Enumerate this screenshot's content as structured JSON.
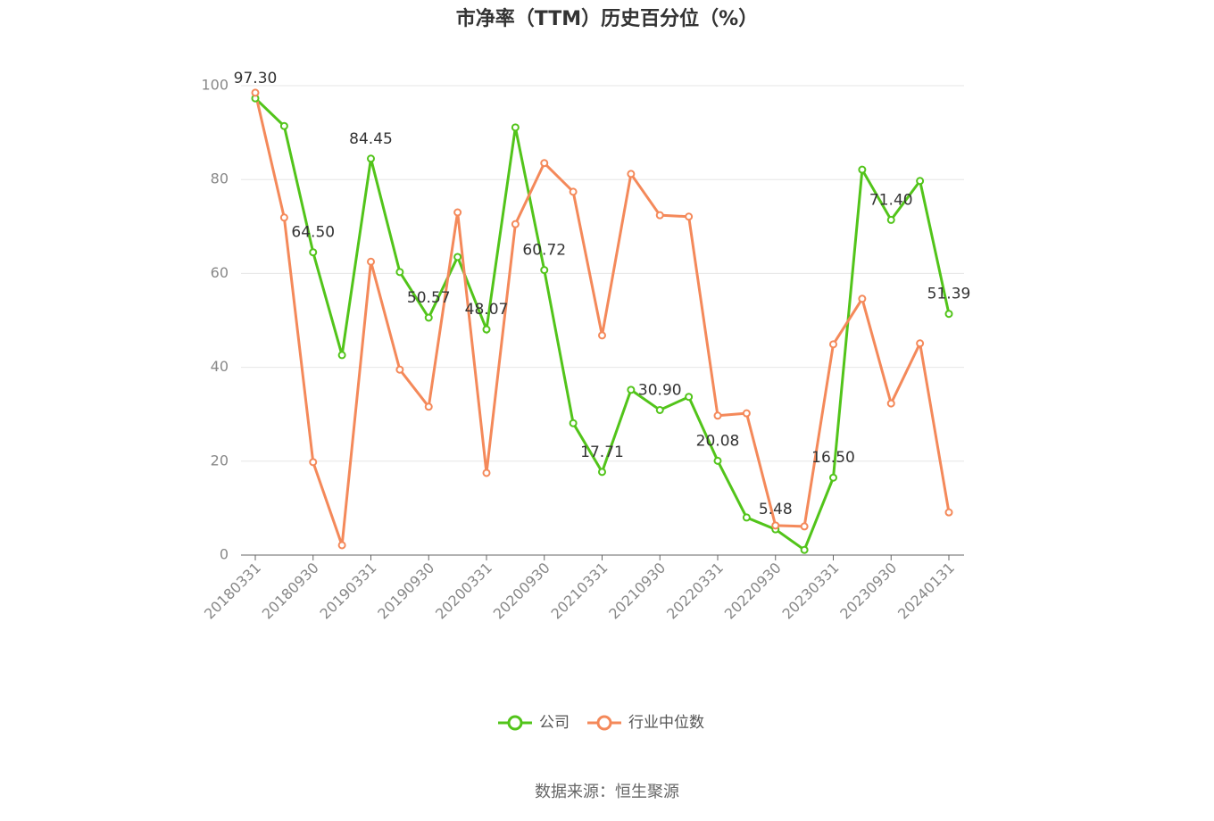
{
  "chart_data": {
    "type": "line",
    "title": "市净率（TTM）历史百分位（%）",
    "source": "数据来源：恒生聚源",
    "categories": [
      "20180331",
      null,
      "20180930",
      null,
      "20190331",
      null,
      "20190930",
      null,
      "20200331",
      null,
      "20200930",
      null,
      "20210331",
      null,
      "20210930",
      null,
      "20220331",
      null,
      "20220930",
      null,
      "20230331",
      null,
      "20230930",
      null,
      "20240131"
    ],
    "series": [
      {
        "name": "公司",
        "color": "#52c41a",
        "values": [
          97.3,
          91.4,
          64.5,
          42.6,
          84.45,
          60.3,
          50.57,
          63.5,
          48.07,
          91.1,
          60.72,
          28.1,
          17.71,
          35.2,
          30.9,
          33.7,
          20.08,
          8.0,
          5.48,
          1.1,
          16.5,
          82.1,
          71.4,
          79.7,
          51.39
        ],
        "value_labels": [
          "97.30",
          null,
          "64.50",
          null,
          "84.45",
          null,
          "50.57",
          null,
          "48.07",
          null,
          "60.72",
          null,
          "17.71",
          null,
          "30.90",
          null,
          "20.08",
          null,
          "5.48",
          null,
          "16.50",
          null,
          "71.40",
          null,
          "51.39"
        ]
      },
      {
        "name": "行业中位数",
        "color": "#f4895a",
        "values": [
          98.5,
          71.9,
          19.8,
          2.1,
          62.5,
          39.5,
          31.6,
          73.0,
          17.5,
          70.5,
          83.5,
          77.4,
          46.8,
          81.2,
          72.4,
          72.1,
          29.7,
          30.2,
          6.3,
          6.1,
          44.9,
          54.6,
          32.3,
          45.1,
          9.1
        ]
      }
    ],
    "ylim": [
      0,
      100
    ],
    "yticks": [
      0,
      20,
      40,
      60,
      80,
      100
    ],
    "grid": true,
    "legend": "bottom"
  }
}
